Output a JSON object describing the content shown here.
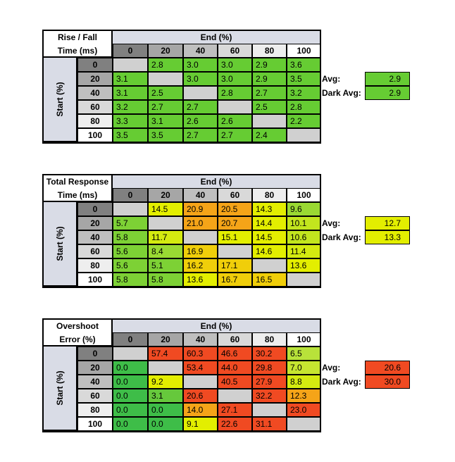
{
  "col_headers": [
    "0",
    "20",
    "40",
    "60",
    "80",
    "100"
  ],
  "row_headers": [
    "0",
    "20",
    "40",
    "60",
    "80",
    "100"
  ],
  "end_label": "End (%)",
  "start_label": "Start (%)",
  "avg_label": "Avg:",
  "dark_avg_label": "Dark Avg:",
  "tables": [
    {
      "title_line1": "Rise / Fall",
      "title_line2": "Time (ms)",
      "avg": "2.9",
      "dark_avg": "2.9",
      "avg_color": "#66cc33",
      "dark_avg_color": "#66cc33",
      "cells": [
        [
          null,
          "2.8",
          "3.0",
          "3.0",
          "2.9",
          "3.6"
        ],
        [
          "3.1",
          null,
          "3.0",
          "3.0",
          "2.9",
          "3.5"
        ],
        [
          "3.1",
          "2.5",
          null,
          "2.8",
          "2.7",
          "3.2"
        ],
        [
          "3.2",
          "2.7",
          "2.7",
          null,
          "2.5",
          "2.8"
        ],
        [
          "3.3",
          "3.1",
          "2.6",
          "2.6",
          null,
          "2.2"
        ],
        [
          "3.5",
          "3.5",
          "2.7",
          "2.7",
          "2.4",
          null
        ]
      ],
      "colors": [
        [
          null,
          "#66cc33",
          "#66cc33",
          "#66cc33",
          "#66cc33",
          "#66cc33"
        ],
        [
          "#66cc33",
          null,
          "#66cc33",
          "#66cc33",
          "#66cc33",
          "#66cc33"
        ],
        [
          "#66cc33",
          "#66cc33",
          null,
          "#66cc33",
          "#66cc33",
          "#66cc33"
        ],
        [
          "#66cc33",
          "#66cc33",
          "#66cc33",
          null,
          "#66cc33",
          "#66cc33"
        ],
        [
          "#66cc33",
          "#66cc33",
          "#66cc33",
          "#66cc33",
          null,
          "#66cc33"
        ],
        [
          "#66cc33",
          "#66cc33",
          "#66cc33",
          "#66cc33",
          "#66cc33",
          null
        ]
      ]
    },
    {
      "title_line1": "Total Response",
      "title_line2": "Time (ms)",
      "avg": "12.7",
      "dark_avg": "13.3",
      "avg_color": "#e3ee00",
      "dark_avg_color": "#e3ee00",
      "cells": [
        [
          null,
          "14.5",
          "20.9",
          "20.5",
          "14.3",
          "9.6"
        ],
        [
          "5.7",
          null,
          "21.0",
          "20.7",
          "14.4",
          "10.1"
        ],
        [
          "5.8",
          "11.7",
          null,
          "15.1",
          "14.5",
          "10.6"
        ],
        [
          "5.6",
          "8.4",
          "16.9",
          null,
          "14.6",
          "11.4"
        ],
        [
          "5.6",
          "5.1",
          "16.2",
          "17.1",
          null,
          "13.6"
        ],
        [
          "5.8",
          "5.8",
          "13.6",
          "16.7",
          "16.5",
          null
        ]
      ],
      "colors": [
        [
          null,
          "#e3ee00",
          "#f5a418",
          "#f5a418",
          "#e3ee00",
          "#9ad933"
        ],
        [
          "#7dd135",
          null,
          "#f5a418",
          "#f5a418",
          "#e3ee00",
          "#c2e51e"
        ],
        [
          "#7dd135",
          "#d4ea10",
          null,
          "#e3ee00",
          "#e3ee00",
          "#c2e51e"
        ],
        [
          "#7dd135",
          "#9ad933",
          "#f0ce0a",
          null,
          "#e3ee00",
          "#d4ea10"
        ],
        [
          "#7dd135",
          "#7dd135",
          "#f0ce0a",
          "#f0ce0a",
          null,
          "#e3ee00"
        ],
        [
          "#7dd135",
          "#7dd135",
          "#e3ee00",
          "#f0ce0a",
          "#f0ce0a",
          null
        ]
      ]
    },
    {
      "title_line1": "Overshoot",
      "title_line2": "Error (%)",
      "avg": "20.6",
      "dark_avg": "30.0",
      "avg_color": "#f04a22",
      "dark_avg_color": "#f04a22",
      "cells": [
        [
          null,
          "57.4",
          "60.3",
          "46.6",
          "30.2",
          "6.5"
        ],
        [
          "0.0",
          null,
          "53.4",
          "44.0",
          "29.8",
          "7.0"
        ],
        [
          "0.0",
          "9.2",
          null,
          "40.5",
          "27.9",
          "8.8"
        ],
        [
          "0.0",
          "3.1",
          "20.6",
          null,
          "32.2",
          "12.3"
        ],
        [
          "0.0",
          "0.0",
          "14.0",
          "27.1",
          null,
          "23.0"
        ],
        [
          "0.0",
          "0.0",
          "9.1",
          "22.6",
          "31.1",
          null
        ]
      ],
      "colors": [
        [
          null,
          "#f04a22",
          "#f04a22",
          "#f04a22",
          "#f04a22",
          "#b8e23a"
        ],
        [
          "#3ebd48",
          null,
          "#f04a22",
          "#f04a22",
          "#f04a22",
          "#c6e530"
        ],
        [
          "#3ebd48",
          "#e3ee00",
          null,
          "#f04a22",
          "#f04a22",
          "#d4ea10"
        ],
        [
          "#3ebd48",
          "#66c83c",
          "#f04a22",
          null,
          "#f04a22",
          "#f5a418"
        ],
        [
          "#3ebd48",
          "#3ebd48",
          "#f5a418",
          "#f04a22",
          null,
          "#f04a22"
        ],
        [
          "#3ebd48",
          "#3ebd48",
          "#e3ee00",
          "#f04a22",
          "#f04a22",
          null
        ]
      ]
    }
  ],
  "header_colors": {
    "col": [
      "#808080",
      "#a6a6a6",
      "#bfbfbf",
      "#d9d9d9",
      "#eeeeee",
      "#ffffff"
    ],
    "row": [
      "#808080",
      "#a6a6a6",
      "#bfbfbf",
      "#d9d9d9",
      "#eeeeee",
      "#ffffff"
    ],
    "diagonal": "#d0d0d0"
  }
}
